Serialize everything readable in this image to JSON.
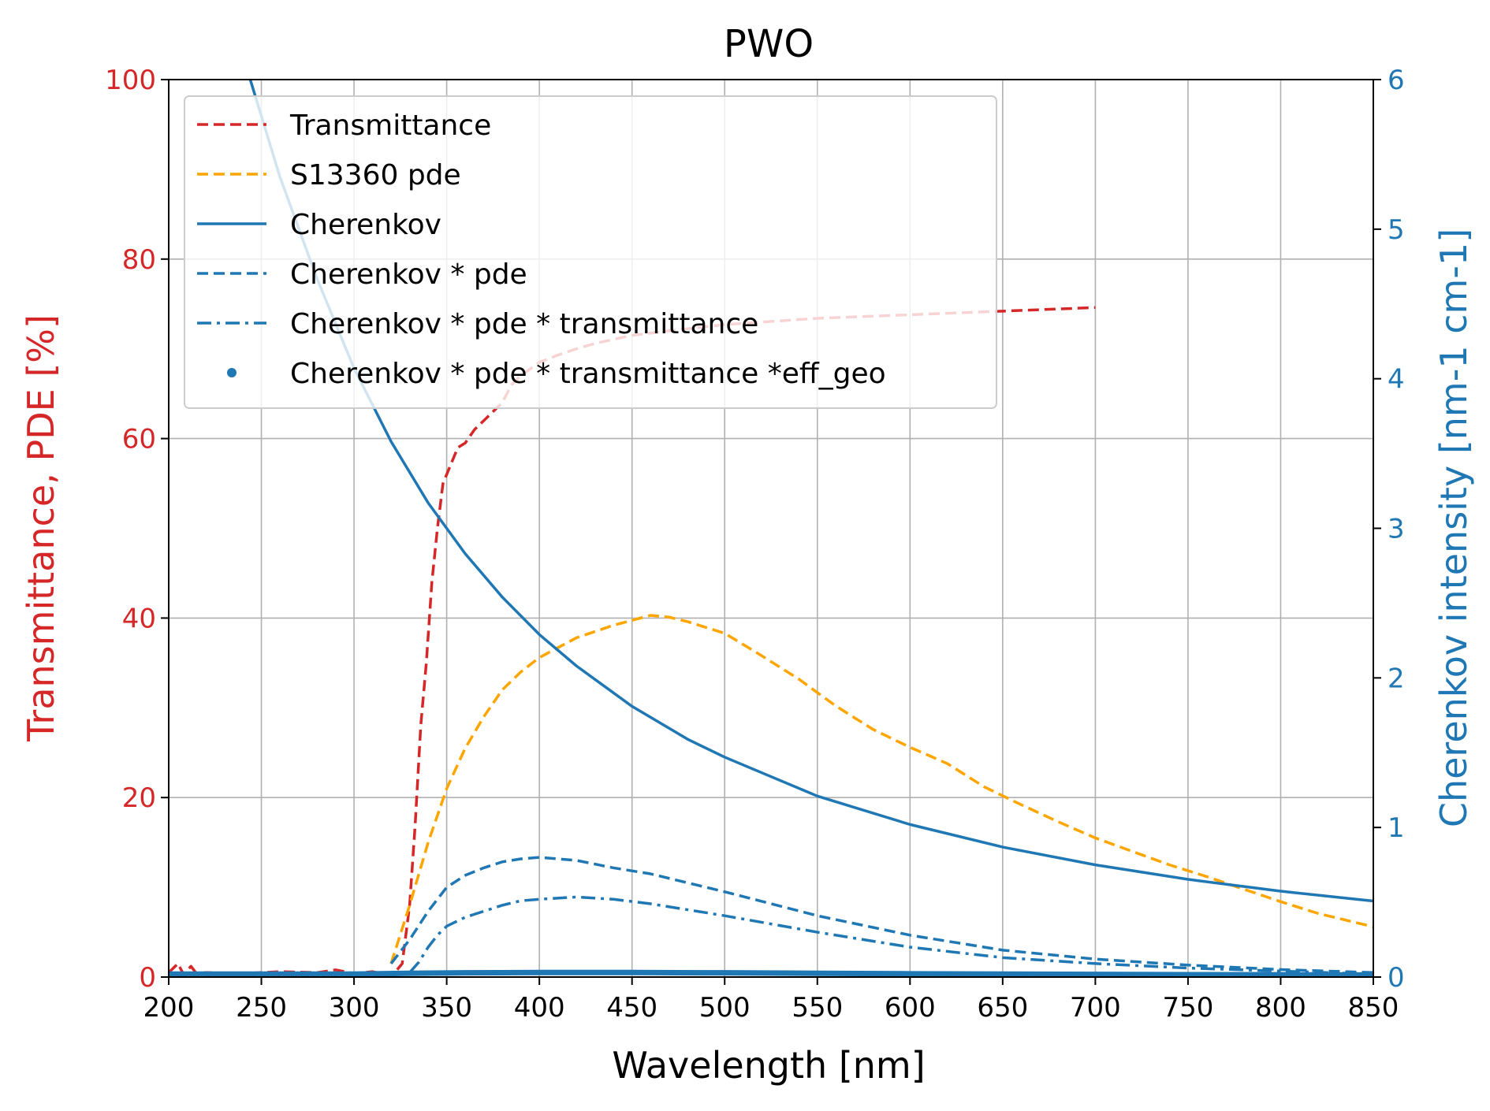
{
  "chart_data": {
    "type": "line",
    "title": "PWO",
    "xlabel": "Wavelength [nm]",
    "ylabel_left": "Transmittance, PDE [%]",
    "ylabel_right": "Cherenkov intensity [nm-1 cm-1]",
    "xlim": [
      200,
      850
    ],
    "ylim_left": [
      0,
      100
    ],
    "ylim_right": [
      0,
      6
    ],
    "x_ticks": [
      200,
      250,
      300,
      350,
      400,
      450,
      500,
      550,
      600,
      650,
      700,
      750,
      800,
      850
    ],
    "y_left_ticks": [
      0,
      20,
      40,
      60,
      80,
      100
    ],
    "y_right_ticks": [
      0,
      1,
      2,
      3,
      4,
      5,
      6
    ],
    "grid": true,
    "legend_position": "upper-left",
    "colors": {
      "transmittance": "#d62728",
      "pde": "#ffa500",
      "cherenkov": "#1f77b4",
      "left_axis": "#d62728",
      "right_axis": "#1f77b4"
    },
    "series": [
      {
        "name": "Transmittance",
        "axis": "left",
        "style": "dashed",
        "color": "#d62728",
        "x": [
          200,
          205,
          208,
          212,
          215,
          220,
          240,
          260,
          280,
          290,
          300,
          310,
          318,
          322,
          326,
          330,
          333,
          336,
          339,
          342,
          345,
          348,
          352,
          356,
          360,
          365,
          370,
          375,
          380,
          385,
          390,
          400,
          410,
          420,
          430,
          450,
          470,
          500,
          550,
          600,
          650,
          700
        ],
        "y": [
          0.5,
          1.5,
          0.3,
          1.2,
          0.4,
          0.5,
          0.4,
          0.6,
          0.5,
          0.8,
          0.4,
          0.6,
          0.3,
          0.5,
          1.5,
          8,
          17,
          28,
          35,
          44,
          50,
          55,
          57,
          59,
          59.5,
          61,
          62,
          63,
          64,
          66,
          67,
          68.5,
          69.3,
          70,
          70.6,
          71.5,
          72,
          72.7,
          73.4,
          73.8,
          74.2,
          74.6
        ]
      },
      {
        "name": "S13360 pde",
        "axis": "left",
        "style": "dashed",
        "color": "#ffa500",
        "x": [
          320,
          330,
          340,
          350,
          360,
          370,
          380,
          390,
          400,
          420,
          440,
          460,
          470,
          480,
          500,
          520,
          540,
          560,
          580,
          600,
          620,
          640,
          660,
          680,
          700,
          720,
          740,
          760,
          780,
          800,
          820,
          850
        ],
        "y": [
          1.5,
          8,
          15,
          21,
          25.5,
          29,
          32,
          34,
          35.6,
          37.8,
          39.2,
          40.3,
          40.1,
          39.6,
          38.3,
          35.8,
          33.2,
          30.2,
          27.6,
          25.6,
          23.8,
          21.2,
          19.2,
          17.3,
          15.5,
          14,
          12.5,
          11.2,
          9.8,
          8.4,
          7.1,
          5.6
        ]
      },
      {
        "name": "Cherenkov",
        "axis": "right",
        "style": "solid",
        "color": "#1f77b4",
        "x": [
          244,
          260,
          280,
          300,
          320,
          340,
          360,
          380,
          400,
          420,
          450,
          480,
          500,
          550,
          600,
          650,
          700,
          750,
          800,
          850
        ],
        "y": [
          6.0,
          5.35,
          4.67,
          4.07,
          3.58,
          3.17,
          2.83,
          2.54,
          2.29,
          2.08,
          1.81,
          1.59,
          1.47,
          1.21,
          1.02,
          0.869,
          0.75,
          0.653,
          0.574,
          0.508
        ]
      },
      {
        "name": "Cherenkov * pde",
        "axis": "right",
        "style": "dashed",
        "color": "#1f77b4",
        "x": [
          320,
          330,
          340,
          350,
          360,
          370,
          380,
          390,
          400,
          420,
          440,
          460,
          480,
          500,
          550,
          600,
          650,
          700,
          750,
          800,
          850
        ],
        "y": [
          0.09,
          0.25,
          0.44,
          0.6,
          0.68,
          0.73,
          0.77,
          0.79,
          0.8,
          0.78,
          0.73,
          0.69,
          0.63,
          0.57,
          0.41,
          0.28,
          0.18,
          0.12,
          0.08,
          0.05,
          0.03
        ]
      },
      {
        "name": "Cherenkov * pde * transmittance",
        "axis": "right",
        "style": "dashdot",
        "color": "#1f77b4",
        "x": [
          330,
          335,
          340,
          345,
          350,
          360,
          370,
          380,
          390,
          400,
          420,
          440,
          460,
          480,
          500,
          550,
          600,
          650,
          700,
          750,
          800,
          850
        ],
        "y": [
          0.03,
          0.1,
          0.2,
          0.28,
          0.34,
          0.4,
          0.44,
          0.48,
          0.51,
          0.52,
          0.535,
          0.52,
          0.49,
          0.45,
          0.41,
          0.3,
          0.2,
          0.13,
          0.09,
          0.06,
          0.04,
          0.02
        ]
      },
      {
        "name": "Cherenkov * pde * transmittance *eff_geo",
        "axis": "right",
        "style": "dots",
        "color": "#1f77b4",
        "x": [
          200,
          250,
          300,
          330,
          360,
          400,
          450,
          500,
          550,
          600,
          650,
          700,
          750,
          800,
          850
        ],
        "y": [
          0.02,
          0.02,
          0.02,
          0.025,
          0.028,
          0.03,
          0.03,
          0.028,
          0.025,
          0.022,
          0.02,
          0.018,
          0.016,
          0.015,
          0.014
        ]
      }
    ]
  }
}
